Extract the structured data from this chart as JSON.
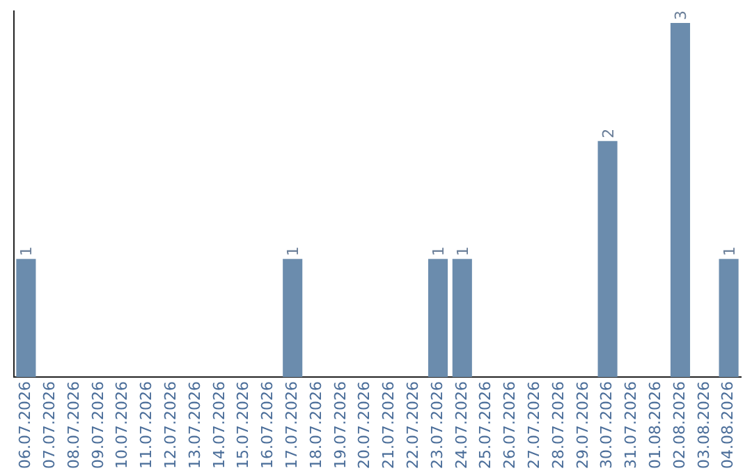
{
  "chart_data": {
    "type": "bar",
    "categories": [
      "06.07.2026",
      "07.07.2026",
      "08.07.2026",
      "09.07.2026",
      "10.07.2026",
      "11.07.2026",
      "12.07.2026",
      "13.07.2026",
      "14.07.2026",
      "15.07.2026",
      "16.07.2026",
      "17.07.2026",
      "18.07.2026",
      "19.07.2026",
      "20.07.2026",
      "21.07.2026",
      "22.07.2026",
      "23.07.2026",
      "24.07.2026",
      "25.07.2026",
      "26.07.2026",
      "27.07.2026",
      "28.07.2026",
      "29.07.2026",
      "30.07.2026",
      "31.07.2026",
      "01.08.2026",
      "02.08.2026",
      "03.08.2026",
      "04.08.2026"
    ],
    "values": [
      1,
      0,
      0,
      0,
      0,
      0,
      0,
      0,
      0,
      0,
      0,
      1,
      0,
      0,
      0,
      0,
      0,
      1,
      1,
      0,
      0,
      0,
      0,
      0,
      2,
      0,
      0,
      3,
      0,
      1
    ],
    "color": "#6b8cad",
    "ylim": [
      0,
      3.1
    ],
    "tick_labels": "x",
    "grid": false,
    "legend": false,
    "value_labels": [
      "1",
      null,
      null,
      null,
      null,
      null,
      null,
      null,
      null,
      null,
      null,
      "1",
      null,
      null,
      null,
      null,
      null,
      "1",
      "1",
      null,
      null,
      null,
      null,
      null,
      "2",
      null,
      null,
      "3",
      null,
      "1"
    ]
  }
}
